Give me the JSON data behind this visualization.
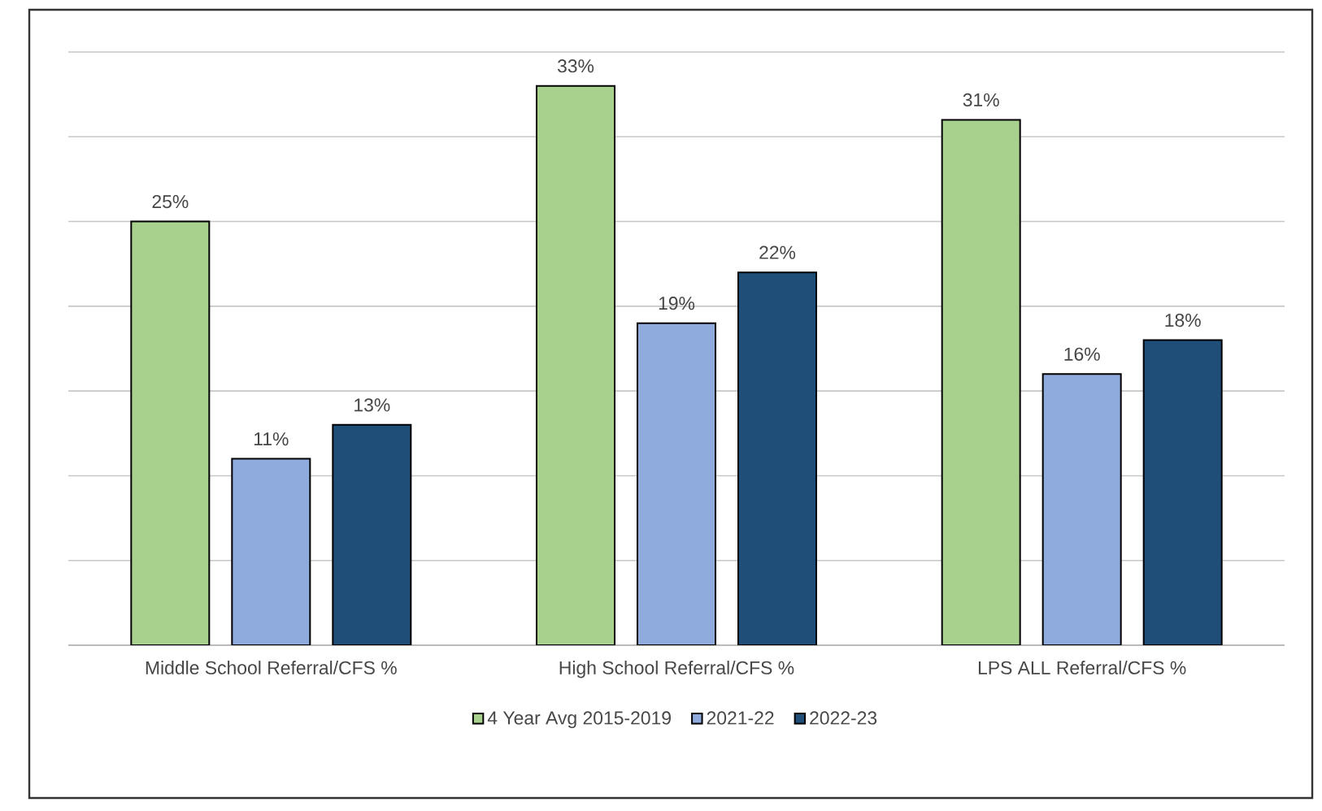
{
  "chart_data": {
    "type": "bar",
    "categories": [
      "Middle School Referral/CFS %",
      "High School Referral/CFS %",
      "LPS ALL Referral/CFS %"
    ],
    "series": [
      {
        "name": "4 Year Avg 2015-2019",
        "color": "#a9d18e",
        "values": [
          25,
          33,
          31
        ],
        "value_labels": [
          "25%",
          "33%",
          "31%"
        ]
      },
      {
        "name": "2021-22",
        "color": "#8faadc",
        "values": [
          11,
          19,
          16
        ],
        "value_labels": [
          "11%",
          "19%",
          "16%"
        ]
      },
      {
        "name": "2022-23",
        "color": "#1f4e79",
        "values": [
          13,
          22,
          18
        ],
        "value_labels": [
          "13%",
          "22%",
          "18%"
        ]
      }
    ],
    "ylim": [
      0,
      35
    ],
    "yticks": [
      {
        "value": 0,
        "label": null
      },
      {
        "value": 5,
        "label": null
      },
      {
        "value": 10,
        "label": null
      },
      {
        "value": 15,
        "label": null
      },
      {
        "value": 20,
        "label": null
      },
      {
        "value": 25,
        "label": null
      },
      {
        "value": 30,
        "label": null
      },
      {
        "value": 35,
        "label": null
      }
    ],
    "tick_labels": "x",
    "grid": "y",
    "legend": "bottom"
  }
}
